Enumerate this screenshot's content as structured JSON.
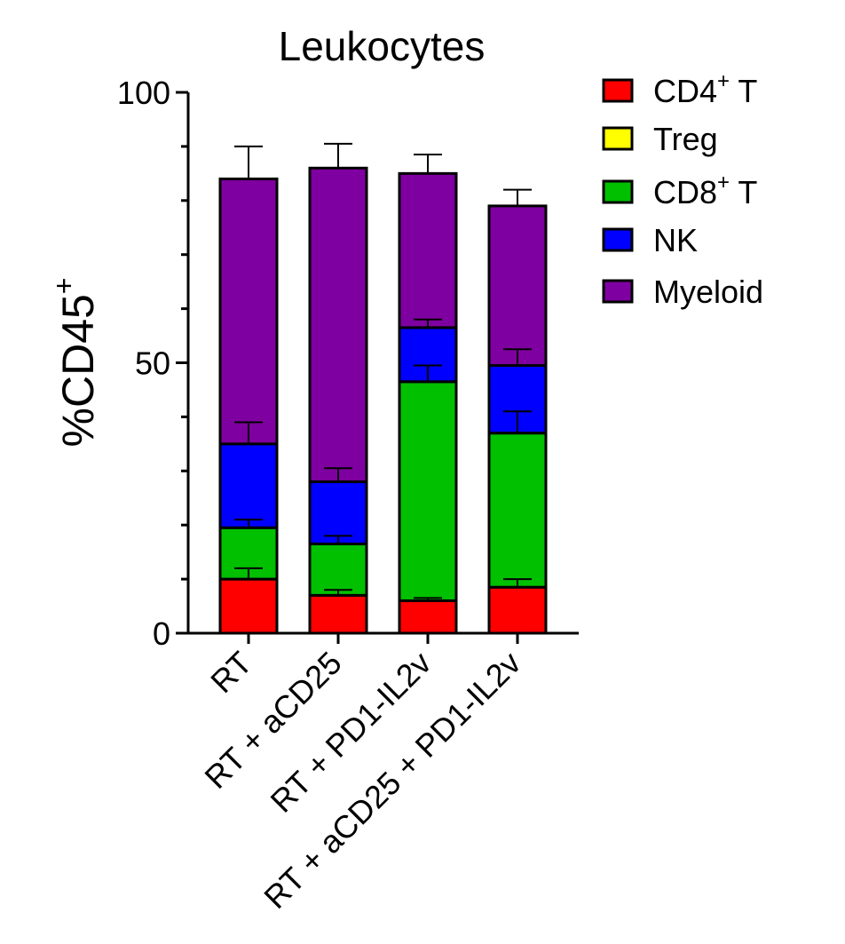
{
  "chart_data": {
    "type": "bar",
    "stacked": true,
    "title": "Leukocytes",
    "ylabel": {
      "prefix": "%CD45",
      "superscript": "+"
    },
    "xlabel": "",
    "ylim": [
      0,
      100
    ],
    "yticks": [
      0,
      50,
      100
    ],
    "yminor_step": 10,
    "legend_position": "top-right",
    "categories": [
      "RT",
      "RT + aCD25",
      "RT + PD1-IL2v",
      "RT + aCD25 + PD1-IL2v"
    ],
    "series": [
      {
        "name": "CD4",
        "label_base": "CD4",
        "label_sup": "+",
        "label_suffix": " T",
        "color": "#ff0000",
        "values": [
          10,
          7,
          6,
          8.5
        ],
        "error": [
          2,
          1,
          0.5,
          1.5
        ]
      },
      {
        "name": "Treg",
        "label_base": "Treg",
        "label_sup": "",
        "label_suffix": "",
        "color": "#ffff00",
        "values": [
          0,
          0,
          0,
          0
        ],
        "error": [
          0,
          0,
          0,
          0
        ]
      },
      {
        "name": "CD8",
        "label_base": "CD8",
        "label_sup": "+",
        "label_suffix": " T",
        "color": "#00c000",
        "values": [
          9.5,
          9.5,
          40.5,
          28.5
        ],
        "error": [
          1.5,
          1.5,
          3,
          4
        ]
      },
      {
        "name": "NK",
        "label_base": "NK",
        "label_sup": "",
        "label_suffix": "",
        "color": "#0000ff",
        "values": [
          15.5,
          11.5,
          10,
          12.5
        ],
        "error": [
          4,
          2.5,
          1.5,
          3
        ]
      },
      {
        "name": "Myeloid",
        "label_base": "Myeloid",
        "label_sup": "",
        "label_suffix": "",
        "color": "#7f00a0",
        "values": [
          49,
          58,
          28.5,
          29.5
        ],
        "error": [
          6,
          4.5,
          3.5,
          3
        ]
      }
    ]
  }
}
